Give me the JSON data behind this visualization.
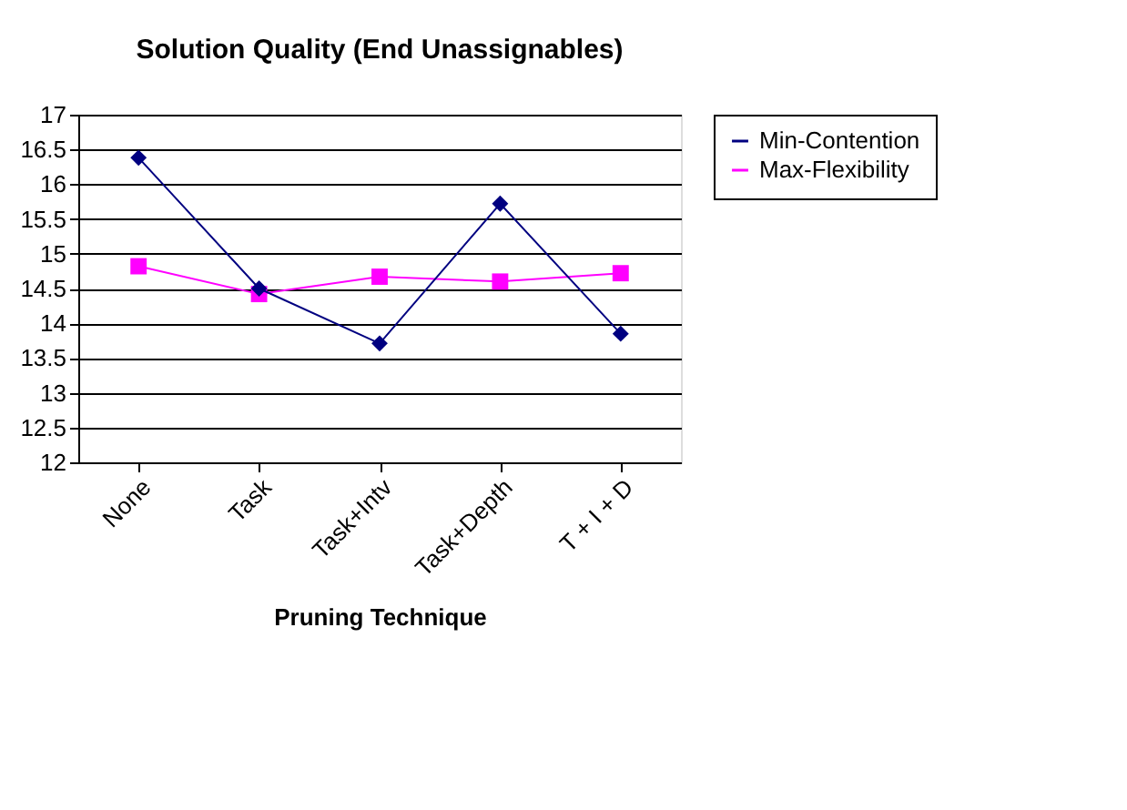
{
  "chart_data": {
    "type": "line",
    "title": "Solution Quality (End Unassignables)",
    "xlabel": "Pruning Technique",
    "categories": [
      "None",
      "Task",
      "Task+Intv",
      "Task+Depth",
      "T + I + D"
    ],
    "series": [
      {
        "name": "Min-Contention",
        "color": "#000080",
        "marker": "diamond",
        "values": [
          16.38,
          14.5,
          13.71,
          15.72,
          13.85
        ]
      },
      {
        "name": "Max-Flexibility",
        "color": "#ff00ff",
        "marker": "square",
        "values": [
          14.82,
          14.42,
          14.67,
          14.6,
          14.72
        ]
      }
    ],
    "ylim": [
      12,
      17
    ],
    "yticks": [
      12,
      12.5,
      13,
      13.5,
      14,
      14.5,
      15,
      15.5,
      16,
      16.5,
      17
    ],
    "grid": "y",
    "legend": "right",
    "line_style": "solid"
  }
}
